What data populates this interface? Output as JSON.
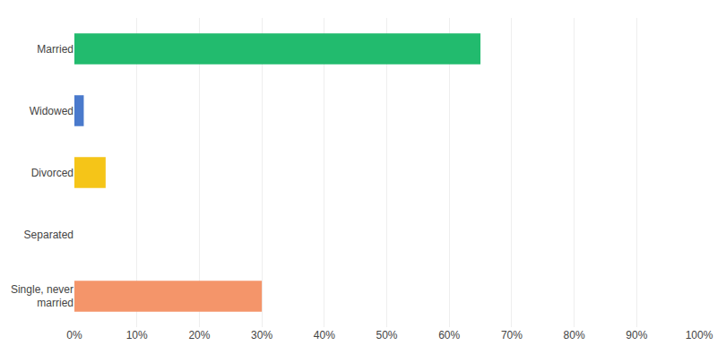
{
  "chart_data": {
    "type": "bar",
    "orientation": "horizontal",
    "categories": [
      "Married",
      "Widowed",
      "Divorced",
      "Separated",
      "Single, never\nmarried"
    ],
    "values": [
      65,
      1.5,
      5,
      0,
      30
    ],
    "colors": [
      "#22bb6e",
      "#4a7acc",
      "#f5c518",
      "#ffffff",
      "#f4956a"
    ],
    "xlim": [
      0,
      100
    ],
    "xticks": [
      {
        "value": 0,
        "label": "0%"
      },
      {
        "value": 10,
        "label": "10%"
      },
      {
        "value": 20,
        "label": "20%"
      },
      {
        "value": 30,
        "label": "30%"
      },
      {
        "value": 40,
        "label": "40%"
      },
      {
        "value": 50,
        "label": "50%"
      },
      {
        "value": 60,
        "label": "60%"
      },
      {
        "value": 70,
        "label": "70%"
      },
      {
        "value": 80,
        "label": "80%"
      },
      {
        "value": 90,
        "label": "90%"
      },
      {
        "value": 100,
        "label": "100%"
      }
    ],
    "grid": true
  }
}
